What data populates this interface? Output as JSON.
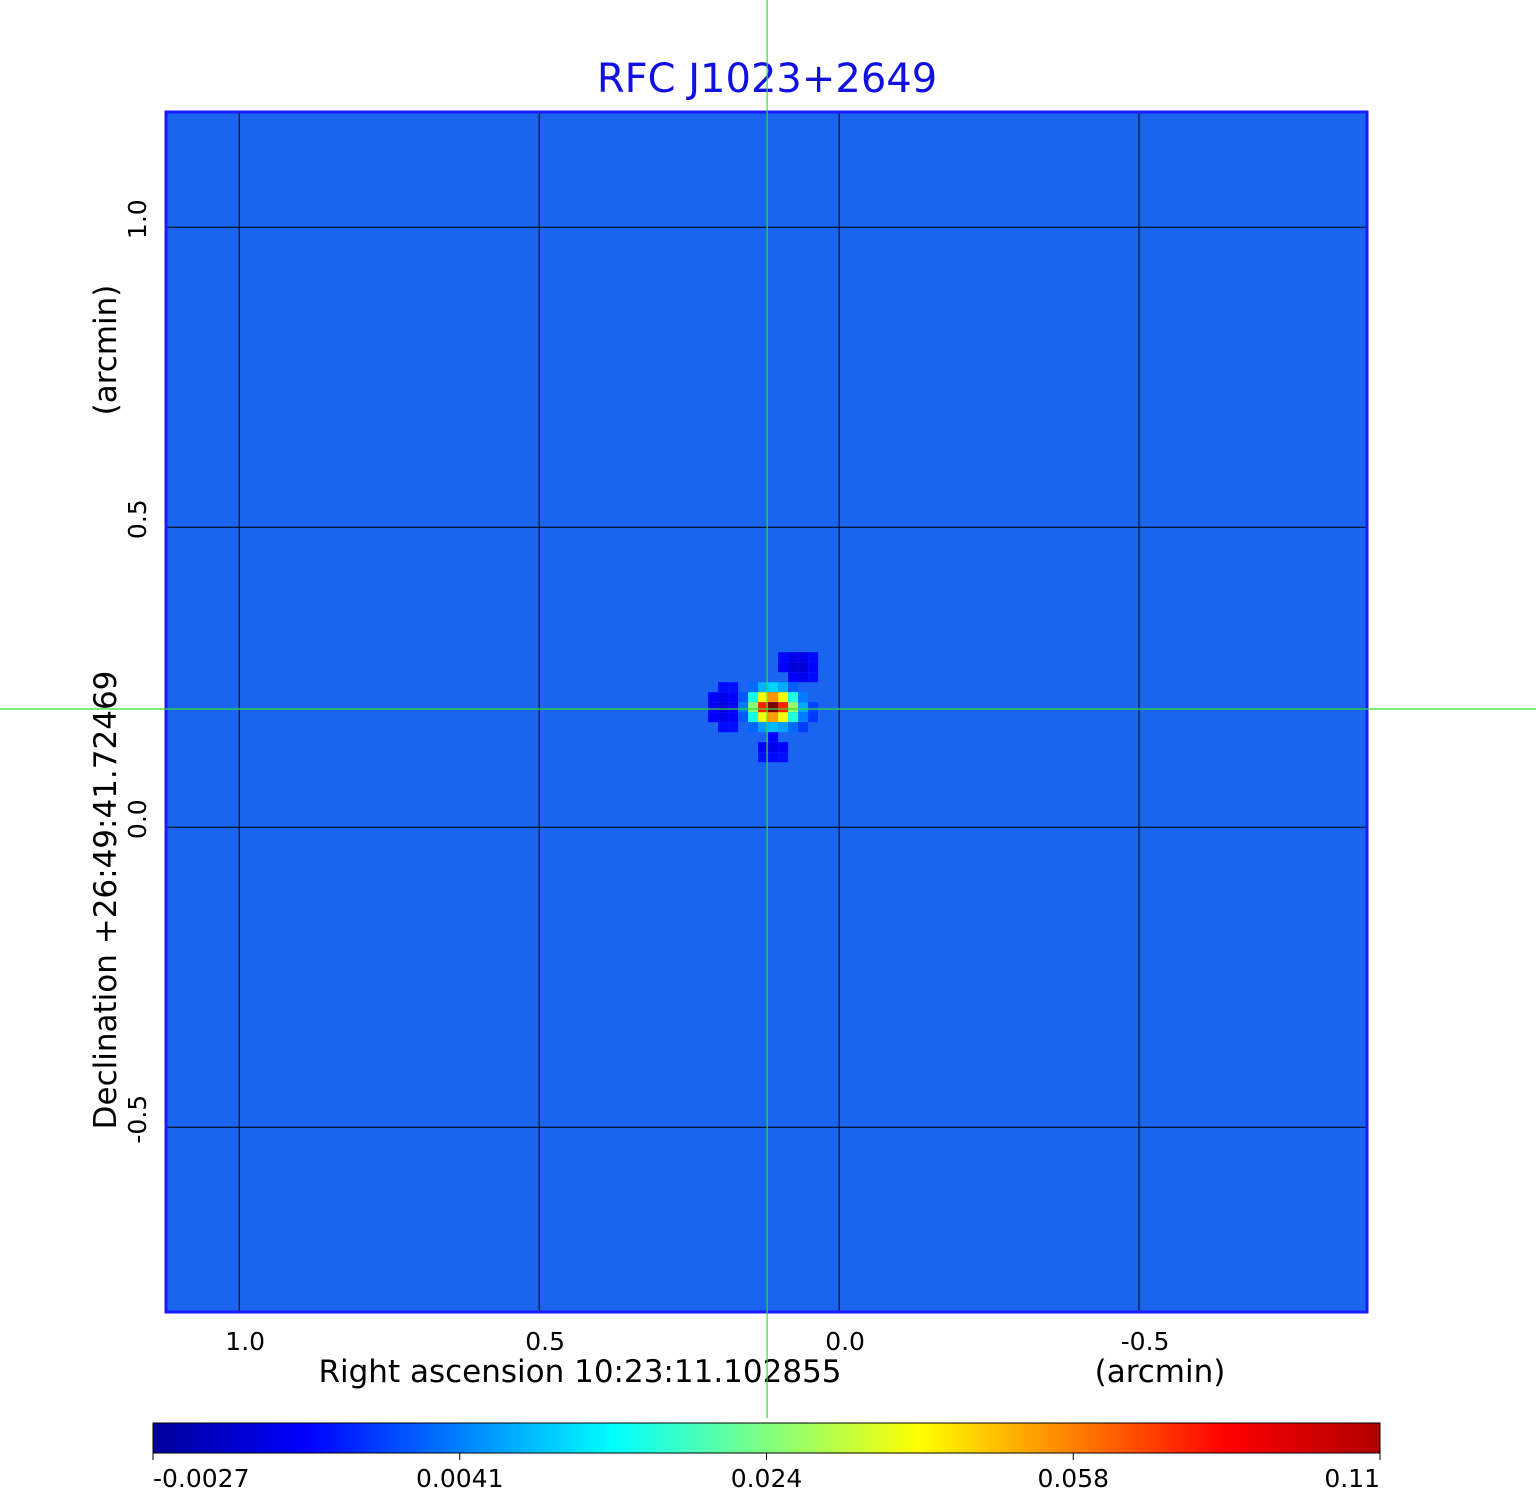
{
  "chart_data": {
    "type": "heatmap",
    "title": "RFC J1023+2649",
    "xlabel": "Right ascension  10:23:11.102855",
    "xunit": "(arcmin)",
    "ylabel": "Declination  +26:49:41.72469",
    "yunit": "(arcmin)",
    "xlim": [
      1.122,
      -0.88
    ],
    "ylim": [
      -0.808,
      1.192
    ],
    "x_ticks": [
      {
        "value": 1.0,
        "label": "1.0"
      },
      {
        "value": 0.5,
        "label": "0.5"
      },
      {
        "value": 0.0,
        "label": "0.0"
      },
      {
        "value": -0.5,
        "label": "-0.5"
      }
    ],
    "y_ticks": [
      {
        "value": 1.0,
        "label": "1.0"
      },
      {
        "value": 0.5,
        "label": "0.5"
      },
      {
        "value": 0.0,
        "label": "0.0"
      },
      {
        "value": -0.5,
        "label": "-0.5"
      }
    ],
    "grid": true,
    "colormap": "jet",
    "background_color": "#1a64f0",
    "crosshair": {
      "ra_offset": 0.12,
      "dec_offset": 0.197,
      "color": "#33dd33"
    },
    "source": {
      "ra_offset": 0.11,
      "dec_offset": 0.2,
      "peak": 0.11
    },
    "colorbar": {
      "ticks": [
        "-0.0027",
        "0.0041",
        "0.024",
        "0.058",
        "0.11"
      ],
      "colors": [
        "#00009a",
        "#0000ff",
        "#0080ff",
        "#00ffff",
        "#80ff80",
        "#ffff00",
        "#ff8000",
        "#ff0000",
        "#b00000"
      ]
    }
  }
}
